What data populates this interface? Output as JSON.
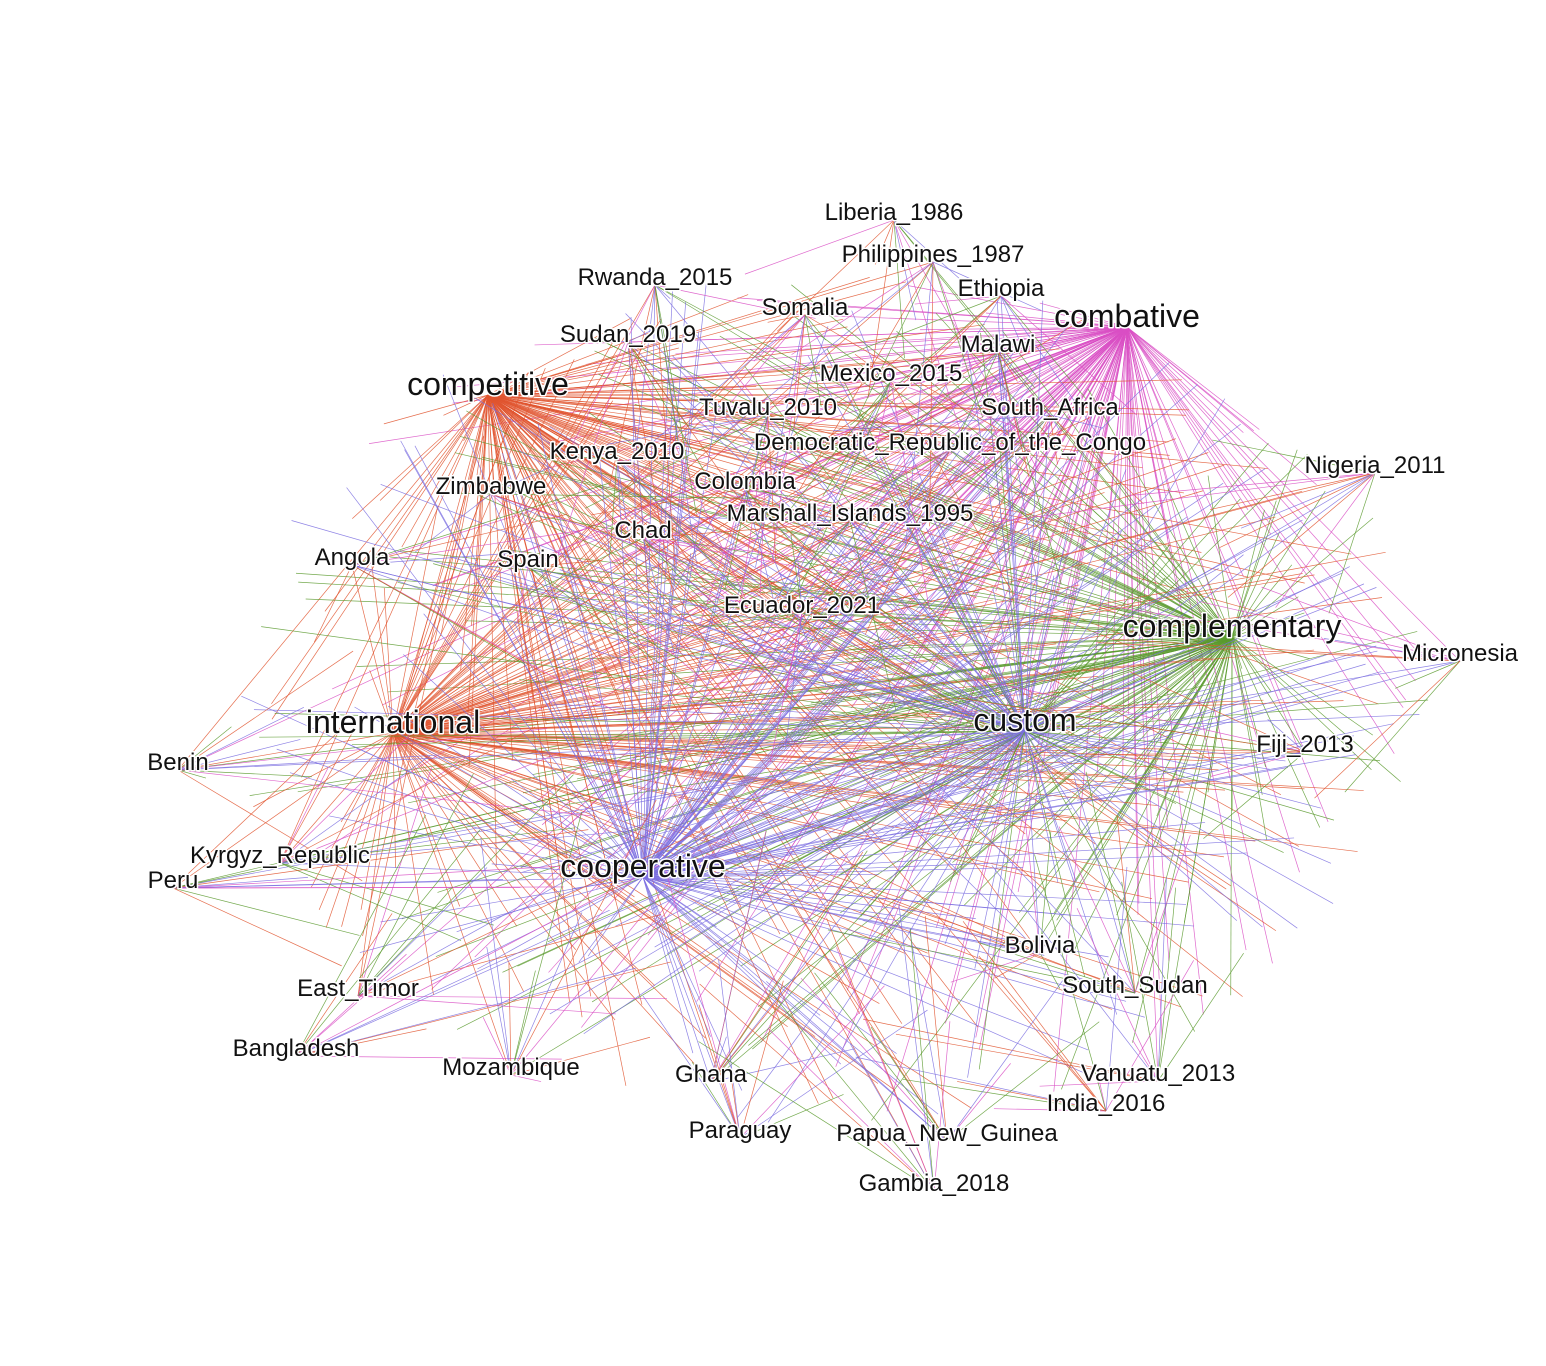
{
  "nodes": [
    {
      "label": "combative"
    },
    {
      "label": "competitive"
    },
    {
      "label": "complementary"
    },
    {
      "label": "international"
    },
    {
      "label": "custom"
    },
    {
      "label": "cooperative"
    },
    {
      "label": "Liberia_1986"
    },
    {
      "label": "Philippines_1987"
    },
    {
      "label": "Rwanda_2015"
    },
    {
      "label": "Ethiopia"
    },
    {
      "label": "Somalia"
    },
    {
      "label": "Sudan_2019"
    },
    {
      "label": "Malawi"
    },
    {
      "label": "Mexico_2015"
    },
    {
      "label": "Tuvalu_2010"
    },
    {
      "label": "South_Africa"
    },
    {
      "label": "Kenya_2010"
    },
    {
      "label": "Democratic_Republic_of_the_Congo"
    },
    {
      "label": "Nigeria_2011"
    },
    {
      "label": "Colombia"
    },
    {
      "label": "Zimbabwe"
    },
    {
      "label": "Marshall_Islands_1995"
    },
    {
      "label": "Chad"
    },
    {
      "label": "Angola"
    },
    {
      "label": "Spain"
    },
    {
      "label": "Ecuador_2021"
    },
    {
      "label": "Micronesia"
    },
    {
      "label": "Fiji_2013"
    },
    {
      "label": "Benin"
    },
    {
      "label": "Kyrgyz_Republic"
    },
    {
      "label": "Peru"
    },
    {
      "label": "Bolivia"
    },
    {
      "label": "South_Sudan"
    },
    {
      "label": "East_Timor"
    },
    {
      "label": "Bangladesh"
    },
    {
      "label": "Mozambique"
    },
    {
      "label": "Ghana"
    },
    {
      "label": "Vanuatu_2013"
    },
    {
      "label": "India_2016"
    },
    {
      "label": "Paraguay"
    },
    {
      "label": "Papua_New_Guinea"
    },
    {
      "label": "Gambia_2018"
    }
  ]
}
